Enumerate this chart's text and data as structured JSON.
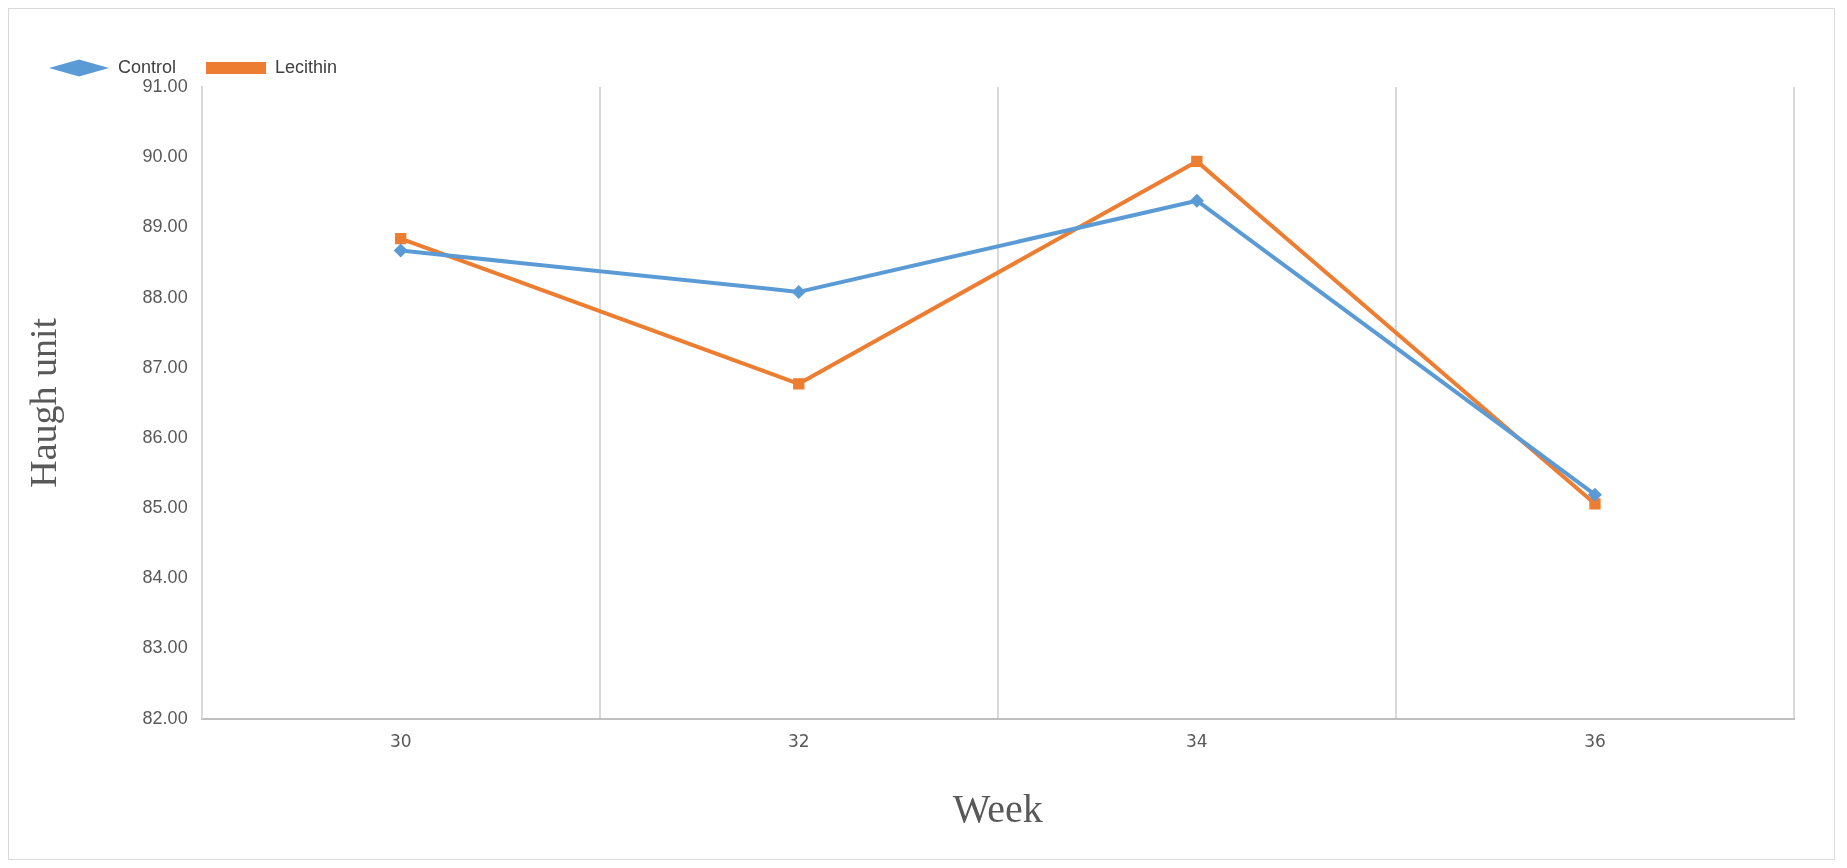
{
  "chart_data": {
    "type": "line",
    "xlabel": "Week",
    "ylabel": "Haugh unit",
    "categories": [
      "30",
      "32",
      "34",
      "36"
    ],
    "series": [
      {
        "name": "Control",
        "color": "#5b9bd5",
        "marker": "diamond",
        "values": [
          88.67,
          88.08,
          89.38,
          85.19
        ]
      },
      {
        "name": "Lecithin",
        "color": "#ed7d31",
        "marker": "square",
        "values": [
          88.84,
          86.77,
          89.94,
          85.06
        ]
      }
    ],
    "ylim": [
      82,
      91
    ],
    "yticks": [
      {
        "value": 82,
        "label": "82.00"
      },
      {
        "value": 83,
        "label": "83.00"
      },
      {
        "value": 84,
        "label": "84.00"
      },
      {
        "value": 85,
        "label": "85.00"
      },
      {
        "value": 86,
        "label": "86.00"
      },
      {
        "value": 87,
        "label": "87.00"
      },
      {
        "value": 88,
        "label": "88.00"
      },
      {
        "value": 89,
        "label": "89.00"
      },
      {
        "value": 90,
        "label": "90.00"
      },
      {
        "value": 91,
        "label": "91.00"
      }
    ],
    "grid": "x",
    "legend": "top left",
    "line_style": "solid"
  }
}
